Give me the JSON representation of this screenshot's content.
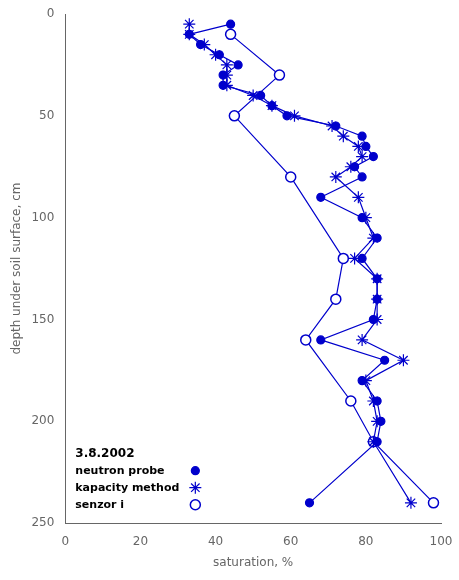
{
  "chart_data": {
    "type": "line",
    "xlabel": "saturation, %",
    "ylabel": "depth under soil surface, cm",
    "xlim": [
      0,
      100
    ],
    "xticks": [
      0,
      20,
      40,
      60,
      80,
      100
    ],
    "ylim": [
      250,
      0
    ],
    "yticks": [
      0,
      50,
      100,
      150,
      200,
      250
    ],
    "grid": false,
    "legend": "lower left",
    "annotations": [
      "3.8.2002"
    ],
    "series": [
      {
        "name": "neutron probe",
        "color": "#0000cc",
        "marker": "circle",
        "x": [
          44,
          33,
          36,
          41,
          46,
          42,
          42,
          52,
          55,
          59,
          72,
          79,
          80,
          82,
          77,
          79,
          68,
          79,
          83,
          79,
          83,
          83,
          82,
          68,
          85,
          79,
          83,
          84,
          83,
          65
        ],
        "values": [
          5,
          10,
          15,
          20,
          25,
          30,
          35,
          40,
          45,
          50,
          55,
          60,
          65,
          70,
          75,
          80,
          90,
          100,
          110,
          120,
          130,
          140,
          150,
          160,
          170,
          180,
          190,
          200,
          210,
          240
        ]
      },
      {
        "name": "kapacity method",
        "color": "#0000cc",
        "marker": "asterisk",
        "x": [
          33,
          33,
          37,
          40,
          43,
          43,
          43,
          50,
          55,
          61,
          71,
          74,
          78,
          79,
          76,
          72,
          78,
          80,
          82,
          77,
          83,
          83,
          83,
          79,
          90,
          80,
          82,
          83,
          82,
          92
        ],
        "values": [
          5,
          10,
          15,
          20,
          25,
          30,
          35,
          40,
          45,
          50,
          55,
          60,
          65,
          70,
          75,
          80,
          90,
          100,
          110,
          120,
          130,
          140,
          150,
          160,
          170,
          180,
          190,
          200,
          210,
          240
        ]
      },
      {
        "name": "senzor i",
        "color": "#0000cc",
        "marker": "open circle",
        "x": [
          44,
          57,
          45,
          60,
          74,
          72,
          64,
          76,
          82,
          98
        ],
        "values": [
          10,
          30,
          50,
          80,
          120,
          140,
          160,
          190,
          210,
          240
        ]
      }
    ]
  }
}
